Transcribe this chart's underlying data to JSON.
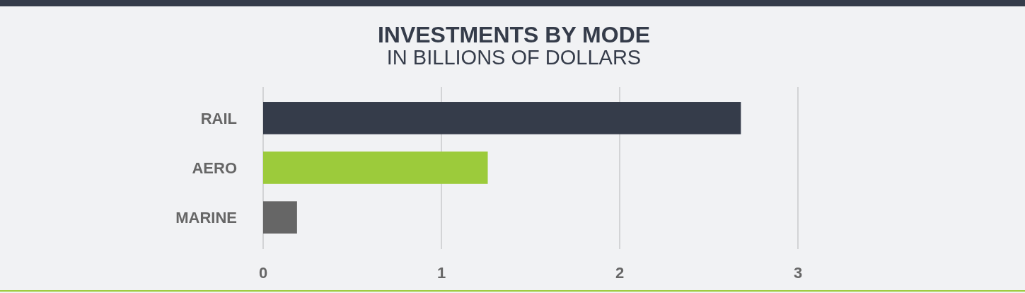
{
  "chart_data": {
    "type": "bar",
    "title": "INVESTMENTS BY MODE",
    "subtitle": "IN BILLIONS OF DOLLARS",
    "orientation": "horizontal",
    "categories": [
      "RAIL",
      "AERO",
      "MARINE"
    ],
    "values": [
      2.68,
      1.26,
      0.19
    ],
    "colors": [
      "#353c4a",
      "#9ccb3b",
      "#666666"
    ],
    "xlim": [
      0,
      3
    ],
    "xticks": [
      0,
      1,
      2,
      3
    ],
    "grid": true
  }
}
